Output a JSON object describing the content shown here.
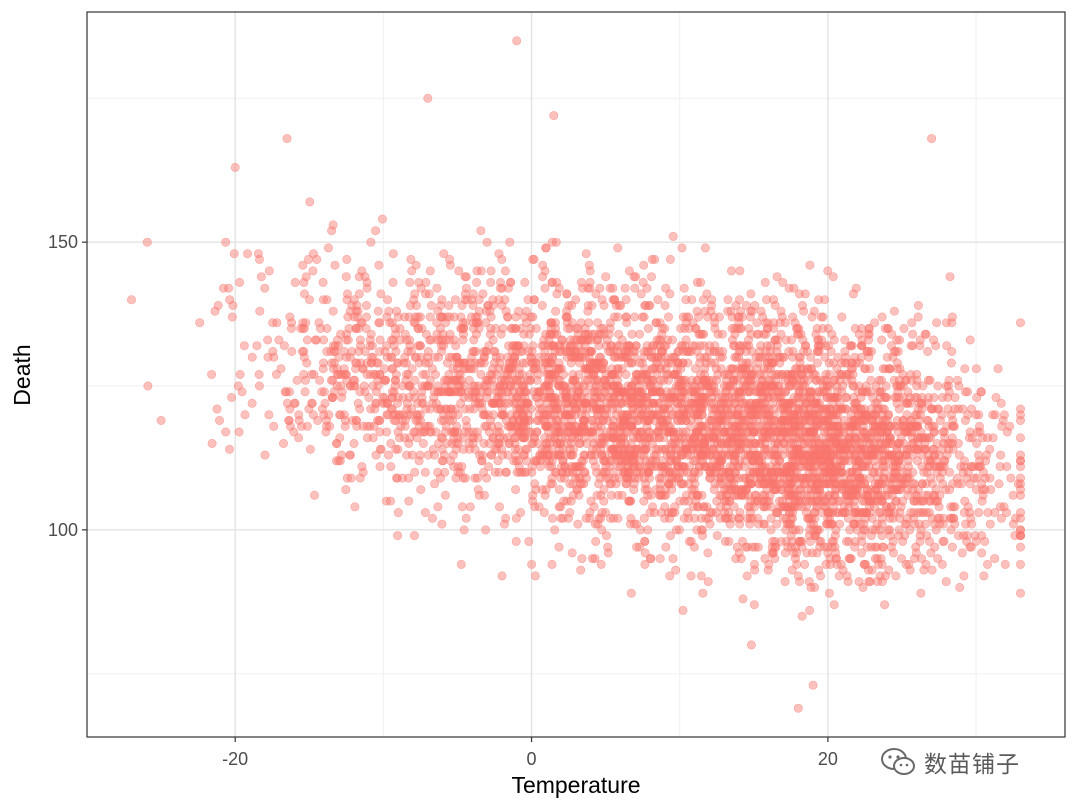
{
  "chart_data": {
    "type": "scatter",
    "title": "",
    "xlabel": "Temperature",
    "ylabel": "Death",
    "xlim": [
      -30,
      36
    ],
    "ylim": [
      64,
      190
    ],
    "x_ticks": [
      -20,
      0,
      20
    ],
    "y_ticks": [
      100,
      150
    ],
    "grid": true,
    "theme": "bw",
    "point_color": "#F8766D",
    "point_alpha": 0.45,
    "n_points": 5114,
    "approx_trend": {
      "slope": -0.4,
      "intercept": 123
    },
    "notable_points": [
      {
        "x": -1,
        "y": 185
      },
      {
        "x": -7,
        "y": 175
      },
      {
        "x": 1.5,
        "y": 172
      },
      {
        "x": 27,
        "y": 168
      },
      {
        "x": 18,
        "y": 69
      },
      {
        "x": 19,
        "y": 73
      },
      {
        "x": -27,
        "y": 140
      },
      {
        "x": 33,
        "y": 121
      },
      {
        "x": 32.5,
        "y": 106
      },
      {
        "x": -20,
        "y": 163
      },
      {
        "x": -16.5,
        "y": 168
      },
      {
        "x": -25,
        "y": 119
      }
    ]
  },
  "watermark": {
    "text": "数苗铺子",
    "icon": "wechat-icon"
  }
}
